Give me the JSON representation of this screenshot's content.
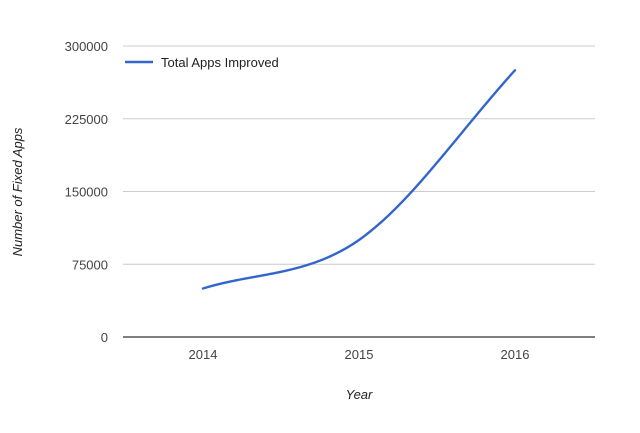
{
  "chart_data": {
    "type": "line",
    "title": "",
    "xlabel": "Year",
    "ylabel": "Number of Fixed Apps",
    "categories": [
      "2014",
      "2015",
      "2016"
    ],
    "x_ticks": [
      "2014",
      "2015",
      "2016"
    ],
    "y_ticks": [
      "0",
      "75000",
      "150000",
      "225000",
      "300000"
    ],
    "ylim": [
      0,
      300000
    ],
    "grid": true,
    "legend_position": "top-left",
    "series": [
      {
        "name": "Total Apps Improved",
        "color": "#3366cc",
        "values": [
          50000,
          100000,
          275000
        ]
      }
    ]
  }
}
